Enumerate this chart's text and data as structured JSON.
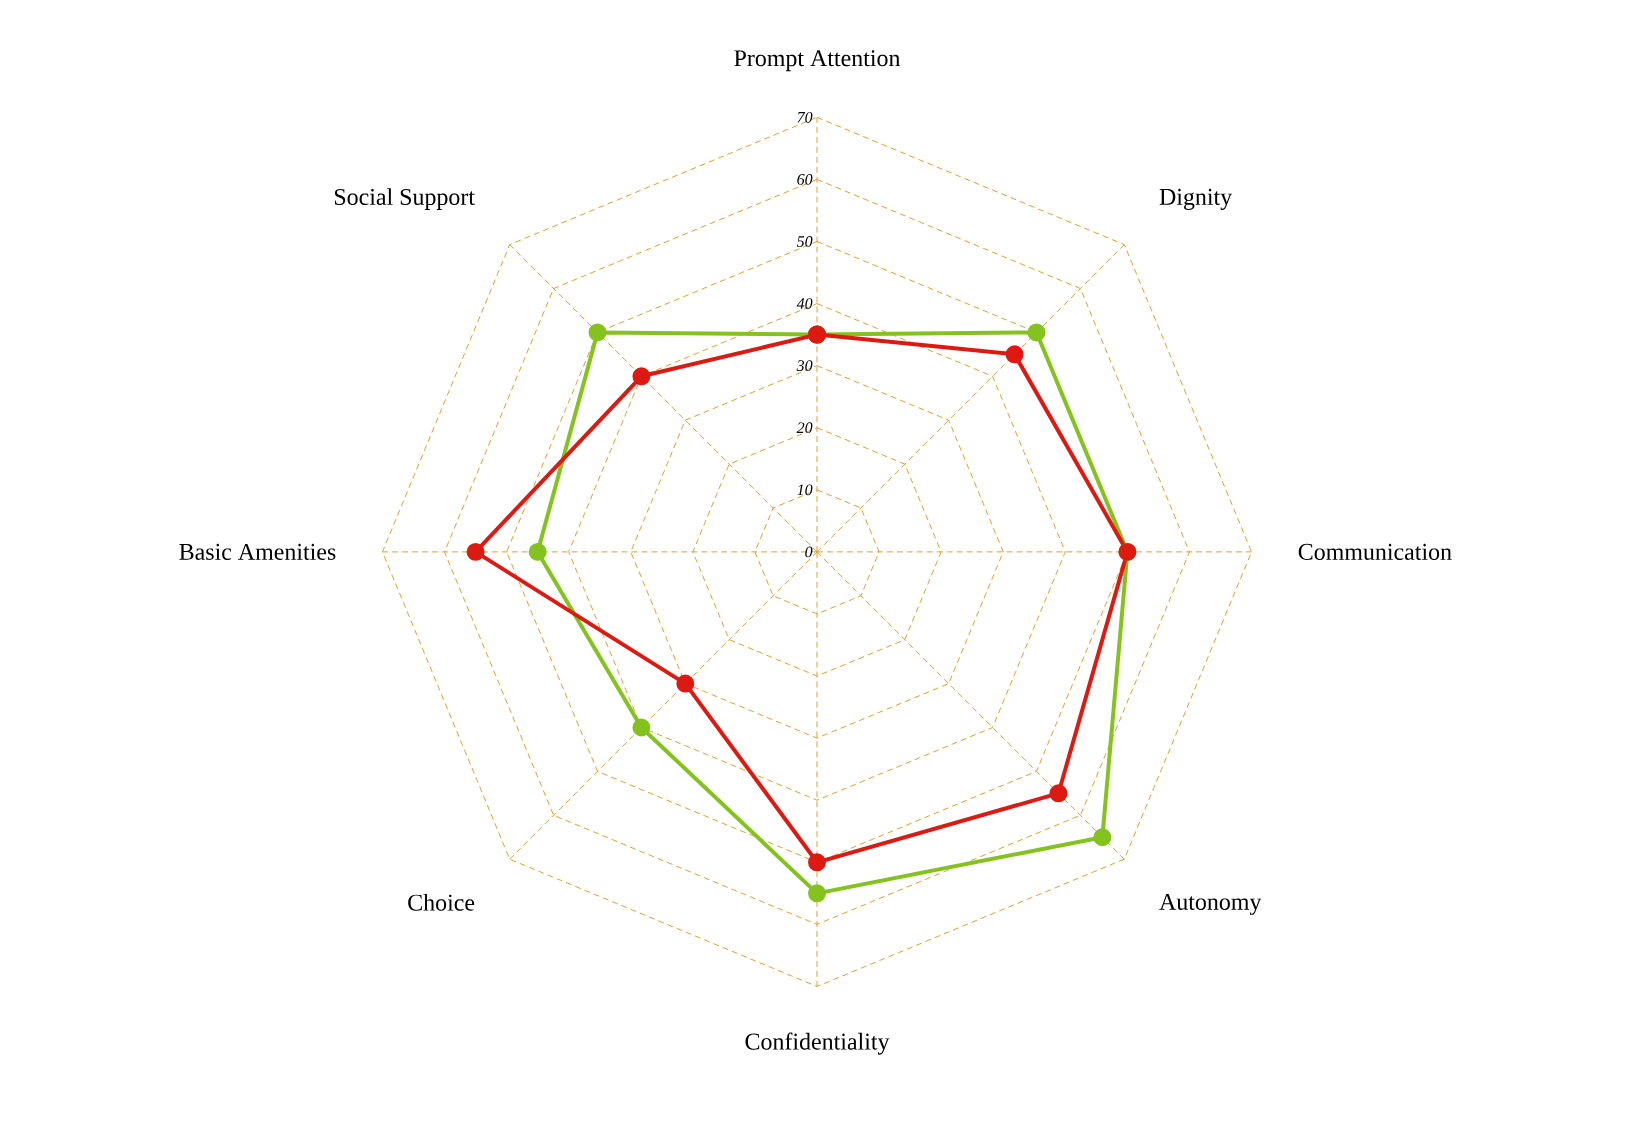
{
  "chart_data": {
    "type": "radar",
    "categories": [
      "Prompt Attention",
      "Dignity",
      "Communication",
      "Autonomy",
      "Confidentiality",
      "Choice",
      "Basic Amenities",
      "Social Support"
    ],
    "ylim": [
      0,
      70
    ],
    "yticks": [
      0,
      10,
      20,
      30,
      40,
      50,
      60,
      70
    ],
    "marker": "circle",
    "grid": true,
    "series": [
      {
        "color": "#84c21e",
        "values": [
          35,
          50,
          50,
          65,
          55,
          40,
          45,
          50
        ]
      },
      {
        "color": "#dd1a12",
        "values": [
          35,
          45,
          50,
          55,
          50,
          30,
          55,
          40
        ]
      }
    ]
  }
}
